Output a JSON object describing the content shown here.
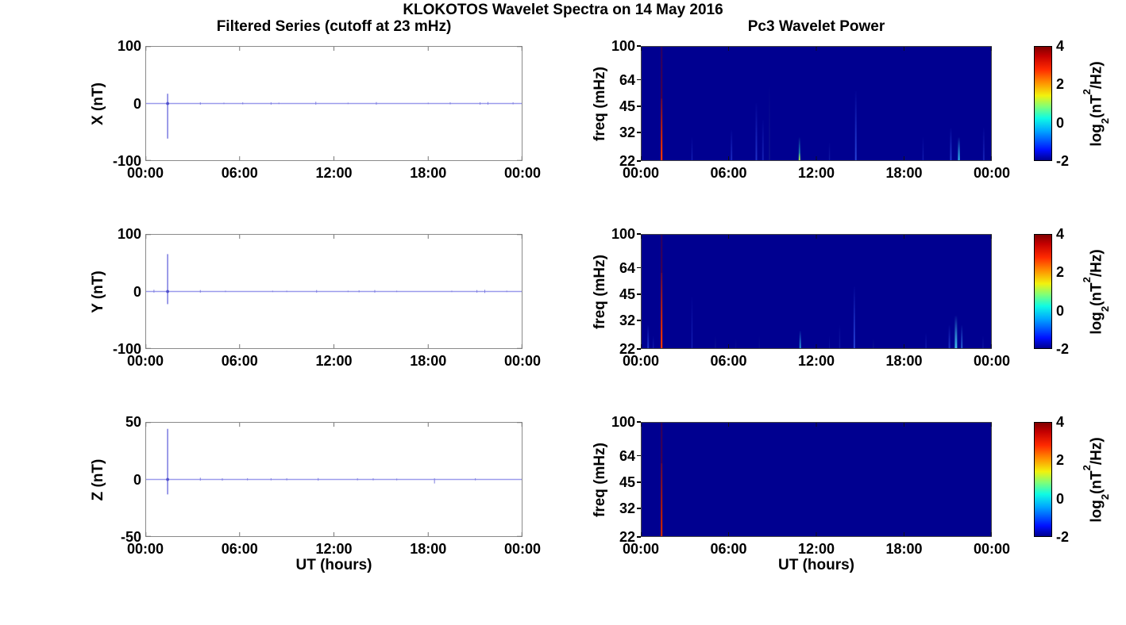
{
  "figure": {
    "title": "KLOKOTOS Wavelet Spectra on 14 May 2016",
    "left_column_title": "Filtered Series (cutoff at 23 mHz)",
    "right_column_title": "Pc3 Wavelet Power",
    "x_axis_label": "UT (hours)",
    "x_tick_labels": [
      "00:00",
      "06:00",
      "12:00",
      "18:00",
      "00:00"
    ],
    "x_tick_hours": [
      0,
      6,
      12,
      18,
      24
    ],
    "colors": {
      "background": "#ffffff",
      "timeseries_line": "#9a9aec",
      "timeseries_spike": "#7070dd",
      "spectrogram_background": "#000090",
      "frame_gray": "#8a8a8a",
      "frame_dark": "#444444"
    }
  },
  "chart_data": [
    {
      "id": "ts-x",
      "type": "line",
      "row": 0,
      "column": "left",
      "ylabel": "X (nT)",
      "ylim": [
        -100,
        100
      ],
      "ytick_labels": [
        "100",
        "0",
        "-100"
      ],
      "xlim_hours": [
        0,
        24
      ],
      "baseline_value": 0,
      "spike": {
        "t_hours": 1.42,
        "max_nT": 17,
        "min_nT": -61
      },
      "noise": [
        [
          3.5,
          2,
          -2
        ],
        [
          5.0,
          1.5,
          -1
        ],
        [
          6.2,
          2,
          -1.5
        ],
        [
          8.0,
          2,
          -2
        ],
        [
          8.5,
          1.5,
          -1
        ],
        [
          10.85,
          3,
          -2
        ],
        [
          12.9,
          1.5,
          -1
        ],
        [
          14.7,
          2.5,
          -2
        ],
        [
          18.0,
          1.5,
          -1
        ],
        [
          19.4,
          2,
          -1.5
        ],
        [
          21.3,
          2,
          -2
        ],
        [
          21.8,
          2.5,
          -2
        ],
        [
          23.4,
          2,
          -1.5
        ]
      ]
    },
    {
      "id": "ts-y",
      "type": "line",
      "row": 1,
      "column": "left",
      "ylabel": "Y (nT)",
      "ylim": [
        -100,
        100
      ],
      "ytick_labels": [
        "100",
        "0",
        "-100"
      ],
      "xlim_hours": [
        0,
        24
      ],
      "baseline_value": 0,
      "spike": {
        "t_hours": 1.42,
        "max_nT": 65,
        "min_nT": -22
      },
      "noise": [
        [
          0.55,
          3,
          -2
        ],
        [
          3.5,
          2.5,
          -2
        ],
        [
          5.1,
          1.5,
          -1
        ],
        [
          8.1,
          1.5,
          -1
        ],
        [
          9.0,
          1.5,
          -1
        ],
        [
          10.9,
          2.5,
          -2
        ],
        [
          12.9,
          1.5,
          -1
        ],
        [
          13.6,
          2,
          -1.5
        ],
        [
          14.6,
          2.5,
          -2
        ],
        [
          16.0,
          1.5,
          -1
        ],
        [
          19.5,
          1.5,
          -1
        ],
        [
          21.1,
          2.5,
          -2
        ],
        [
          21.6,
          3,
          -2.5
        ],
        [
          23.0,
          1.5,
          -1
        ]
      ]
    },
    {
      "id": "ts-z",
      "type": "line",
      "row": 2,
      "column": "left",
      "ylabel": "Z (nT)",
      "ylim": [
        -50,
        50
      ],
      "ytick_labels": [
        "50",
        "0",
        "-50"
      ],
      "xlim_hours": [
        0,
        24
      ],
      "baseline_value": 0,
      "spike": {
        "t_hours": 1.42,
        "max_nT": 44,
        "min_nT": -13
      },
      "noise": [
        [
          3.5,
          1.5,
          -1
        ],
        [
          4.9,
          1,
          -1
        ],
        [
          6.5,
          1,
          -0.8
        ],
        [
          8.0,
          1,
          -0.8
        ],
        [
          9.0,
          1,
          -0.8
        ],
        [
          11.0,
          1.2,
          -1
        ],
        [
          13.5,
          1,
          -0.8
        ],
        [
          14.5,
          1,
          -0.8
        ],
        [
          16.0,
          0.8,
          -0.8
        ],
        [
          18.4,
          1,
          -3.5
        ],
        [
          21.0,
          1,
          -0.8
        ]
      ]
    },
    {
      "id": "wav-x",
      "type": "heatmap",
      "row": 0,
      "column": "right",
      "ylabel": "freq (mHz)",
      "yscale": "log",
      "ylim_mhz": [
        22,
        100
      ],
      "ytick_labels": [
        "100",
        "64",
        "45",
        "32",
        "22"
      ],
      "ytick_values": [
        100,
        64,
        45,
        32,
        22
      ],
      "xlim_hours": [
        0,
        24
      ],
      "background": "#000090",
      "streaks": [
        {
          "t": 1.42,
          "f": 100,
          "c": "#8b0000",
          "w": 2.2,
          "o": 0.95,
          "to": 0.3
        },
        {
          "t": 1.42,
          "f": 50,
          "c": "#ff3c00",
          "w": 2,
          "o": 1,
          "to": 0.15
        },
        {
          "t": 3.5,
          "f": 30,
          "c": "#2438cf",
          "w": 1.5,
          "o": 0.55
        },
        {
          "t": 6.2,
          "f": 33,
          "c": "#2b44dd",
          "w": 2,
          "o": 0.6
        },
        {
          "t": 7.9,
          "f": 47,
          "c": "#2b44dd",
          "w": 2,
          "o": 0.7
        },
        {
          "t": 8.35,
          "f": 38,
          "c": "#2438cf",
          "w": 2,
          "o": 0.55
        },
        {
          "t": 8.8,
          "f": 58,
          "c": "#1f308f",
          "w": 1.5,
          "o": 0.45
        },
        {
          "t": 10.85,
          "f": 30,
          "c": "#2fd9c0",
          "w": 2,
          "o": 0.85
        },
        {
          "t": 10.85,
          "f": 24.5,
          "c": "#b8e03c",
          "w": 2,
          "o": 0.95
        },
        {
          "t": 12.9,
          "f": 28,
          "c": "#2235bb",
          "w": 1.5,
          "o": 0.45
        },
        {
          "t": 14.7,
          "f": 55,
          "c": "#2f52e8",
          "w": 2,
          "o": 0.8
        },
        {
          "t": 19.3,
          "f": 30,
          "c": "#2438cf",
          "w": 1.5,
          "o": 0.5
        },
        {
          "t": 21.2,
          "f": 34,
          "c": "#2f52e8",
          "w": 2,
          "o": 0.7
        },
        {
          "t": 21.75,
          "f": 30,
          "c": "#35c4f0",
          "w": 2.5,
          "o": 0.9
        },
        {
          "t": 23.45,
          "f": 34,
          "c": "#2438cf",
          "w": 2,
          "o": 0.6
        }
      ]
    },
    {
      "id": "wav-y",
      "type": "heatmap",
      "row": 1,
      "column": "right",
      "ylabel": "freq (mHz)",
      "yscale": "log",
      "ylim_mhz": [
        22,
        100
      ],
      "ytick_labels": [
        "100",
        "64",
        "45",
        "32",
        "22"
      ],
      "ytick_values": [
        100,
        64,
        45,
        32,
        22
      ],
      "xlim_hours": [
        0,
        24
      ],
      "background": "#000090",
      "streaks": [
        {
          "t": 1.42,
          "f": 100,
          "c": "#8b0000",
          "w": 2.2,
          "o": 0.95,
          "to": 0.3
        },
        {
          "t": 1.42,
          "f": 60,
          "c": "#ff3c00",
          "w": 2,
          "o": 1,
          "to": 0.15
        },
        {
          "t": 0.5,
          "f": 30,
          "c": "#2f52e8",
          "w": 2,
          "o": 0.7
        },
        {
          "t": 0.85,
          "f": 26,
          "c": "#2438cf",
          "w": 1.5,
          "o": 0.5
        },
        {
          "t": 3.5,
          "f": 44,
          "c": "#2438cf",
          "w": 1.5,
          "o": 0.55
        },
        {
          "t": 5.1,
          "f": 26,
          "c": "#1f308f",
          "w": 1.5,
          "o": 0.4
        },
        {
          "t": 6.5,
          "f": 25,
          "c": "#1f308f",
          "w": 1,
          "o": 0.35
        },
        {
          "t": 8.1,
          "f": 26,
          "c": "#1f308f",
          "w": 1,
          "o": 0.35
        },
        {
          "t": 10.9,
          "f": 28,
          "c": "#35c4f0",
          "w": 2,
          "o": 0.8
        },
        {
          "t": 12.9,
          "f": 26,
          "c": "#2235bb",
          "w": 1,
          "o": 0.4
        },
        {
          "t": 13.6,
          "f": 30,
          "c": "#2235bb",
          "w": 1.5,
          "o": 0.45
        },
        {
          "t": 14.6,
          "f": 50,
          "c": "#2f52e8",
          "w": 2,
          "o": 0.8
        },
        {
          "t": 15.9,
          "f": 25,
          "c": "#1f308f",
          "w": 1.5,
          "o": 0.4
        },
        {
          "t": 19.5,
          "f": 27,
          "c": "#2438cf",
          "w": 1.5,
          "o": 0.45
        },
        {
          "t": 21.1,
          "f": 30,
          "c": "#2f52e8",
          "w": 2,
          "o": 0.65
        },
        {
          "t": 21.55,
          "f": 34,
          "c": "#49d6f2",
          "w": 3,
          "o": 0.9
        },
        {
          "t": 21.95,
          "f": 30,
          "c": "#3a8cf2",
          "w": 2,
          "o": 0.7
        },
        {
          "t": 23.4,
          "f": 26,
          "c": "#2235bb",
          "w": 1.5,
          "o": 0.4
        }
      ]
    },
    {
      "id": "wav-z",
      "type": "heatmap",
      "row": 2,
      "column": "right",
      "ylabel": "freq (mHz)",
      "yscale": "log",
      "ylim_mhz": [
        22,
        100
      ],
      "ytick_labels": [
        "100",
        "64",
        "45",
        "32",
        "22"
      ],
      "ytick_values": [
        100,
        64,
        45,
        32,
        22
      ],
      "xlim_hours": [
        0,
        24
      ],
      "background": "#000090",
      "streaks": [
        {
          "t": 1.42,
          "f": 100,
          "c": "#8b0000",
          "w": 2.2,
          "o": 0.9,
          "to": 0.35
        },
        {
          "t": 1.42,
          "f": 58,
          "c": "#d42a00",
          "w": 2,
          "o": 1,
          "to": 0.2
        }
      ]
    }
  ],
  "colorbar": {
    "tick_labels": [
      "4",
      "2",
      "0",
      "-2"
    ],
    "tick_values": [
      4,
      2,
      0,
      -2
    ],
    "range": [
      -2,
      4
    ],
    "label_parts": {
      "pre": "log",
      "sub": "2",
      "mid": "(nT",
      "sup": "2",
      "suf": "/Hz)"
    },
    "gradient": [
      {
        "p": 0,
        "c": "#000090"
      },
      {
        "p": 9,
        "c": "#0010ff"
      },
      {
        "p": 26,
        "c": "#00a8ff"
      },
      {
        "p": 37,
        "c": "#0ffbe4"
      },
      {
        "p": 47,
        "c": "#7dff7a"
      },
      {
        "p": 57,
        "c": "#f2f20d"
      },
      {
        "p": 68,
        "c": "#ff9400"
      },
      {
        "p": 80,
        "c": "#ff2a00"
      },
      {
        "p": 92,
        "c": "#c40000"
      },
      {
        "p": 100,
        "c": "#800000"
      }
    ]
  }
}
